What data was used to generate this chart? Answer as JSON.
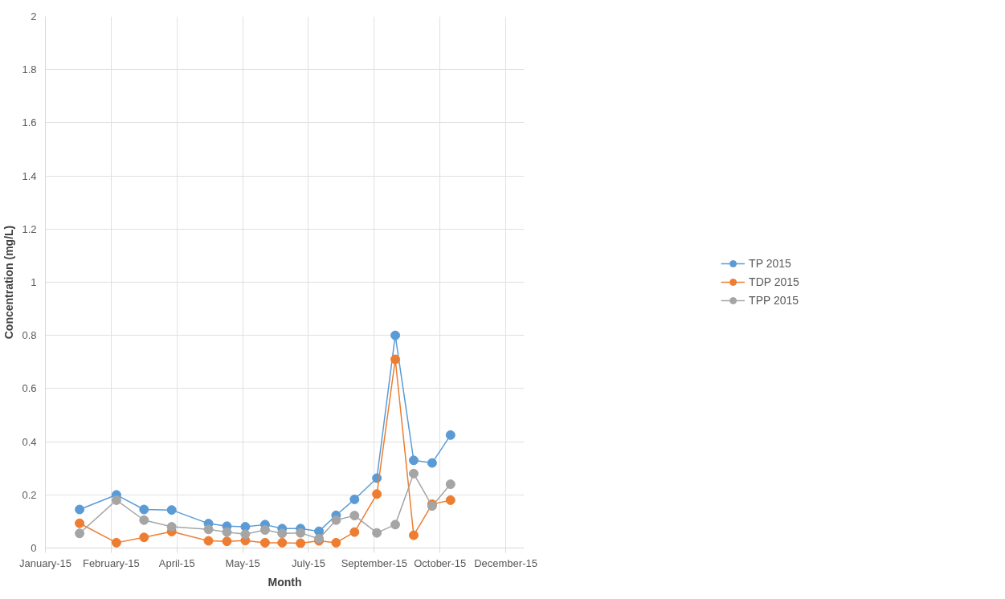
{
  "chart_data": {
    "type": "line",
    "xlabel": "Month",
    "ylabel": "Concentration (mg/L)",
    "x": [
      "2015-01-27",
      "2015-02-24",
      "2015-03-17",
      "2015-04-07",
      "2015-05-05",
      "2015-05-19",
      "2015-06-02",
      "2015-06-17",
      "2015-06-30",
      "2015-07-14",
      "2015-07-28",
      "2015-08-10",
      "2015-08-24",
      "2015-09-10",
      "2015-09-24",
      "2015-10-08",
      "2015-10-22",
      "2015-11-05"
    ],
    "series": [
      {
        "name": "TP 2015",
        "color": "#5b9bd5",
        "values": [
          0.145,
          0.2,
          0.145,
          0.143,
          0.092,
          0.082,
          0.08,
          0.088,
          0.073,
          0.073,
          0.063,
          0.123,
          0.183,
          0.263,
          0.8,
          0.33,
          0.32,
          0.425
        ]
      },
      {
        "name": "TDP 2015",
        "color": "#ed7d31",
        "values": [
          0.093,
          0.02,
          0.04,
          0.062,
          0.027,
          0.025,
          0.028,
          0.02,
          0.02,
          0.018,
          0.027,
          0.02,
          0.06,
          0.203,
          0.71,
          0.048,
          0.165,
          0.18
        ]
      },
      {
        "name": "TPP 2015",
        "color": "#a5a5a5",
        "values": [
          0.055,
          0.18,
          0.105,
          0.08,
          0.07,
          0.06,
          0.052,
          0.068,
          0.055,
          0.057,
          0.035,
          0.105,
          0.122,
          0.057,
          0.088,
          0.28,
          0.158,
          0.24
        ]
      }
    ],
    "xlim": [
      "2015-01-01",
      "2015-12-31"
    ],
    "xticks": [
      {
        "value": "2015-01-01",
        "label": "January-15"
      },
      {
        "value": "2015-02-20",
        "label": "February-15"
      },
      {
        "value": "2015-04-11",
        "label": "April-15"
      },
      {
        "value": "2015-05-31",
        "label": "May-15"
      },
      {
        "value": "2015-07-20",
        "label": "July-15"
      },
      {
        "value": "2015-09-08",
        "label": "September-15"
      },
      {
        "value": "2015-10-28",
        "label": "October-15"
      },
      {
        "value": "2015-12-17",
        "label": "December-15"
      }
    ],
    "ylim": [
      0,
      2
    ],
    "yticks": [
      0,
      0.2,
      0.4,
      0.6,
      0.8,
      1,
      1.2,
      1.4,
      1.6,
      1.8,
      2
    ],
    "grid": true,
    "legend": "right",
    "marker": "circle",
    "line_style": "solid"
  }
}
